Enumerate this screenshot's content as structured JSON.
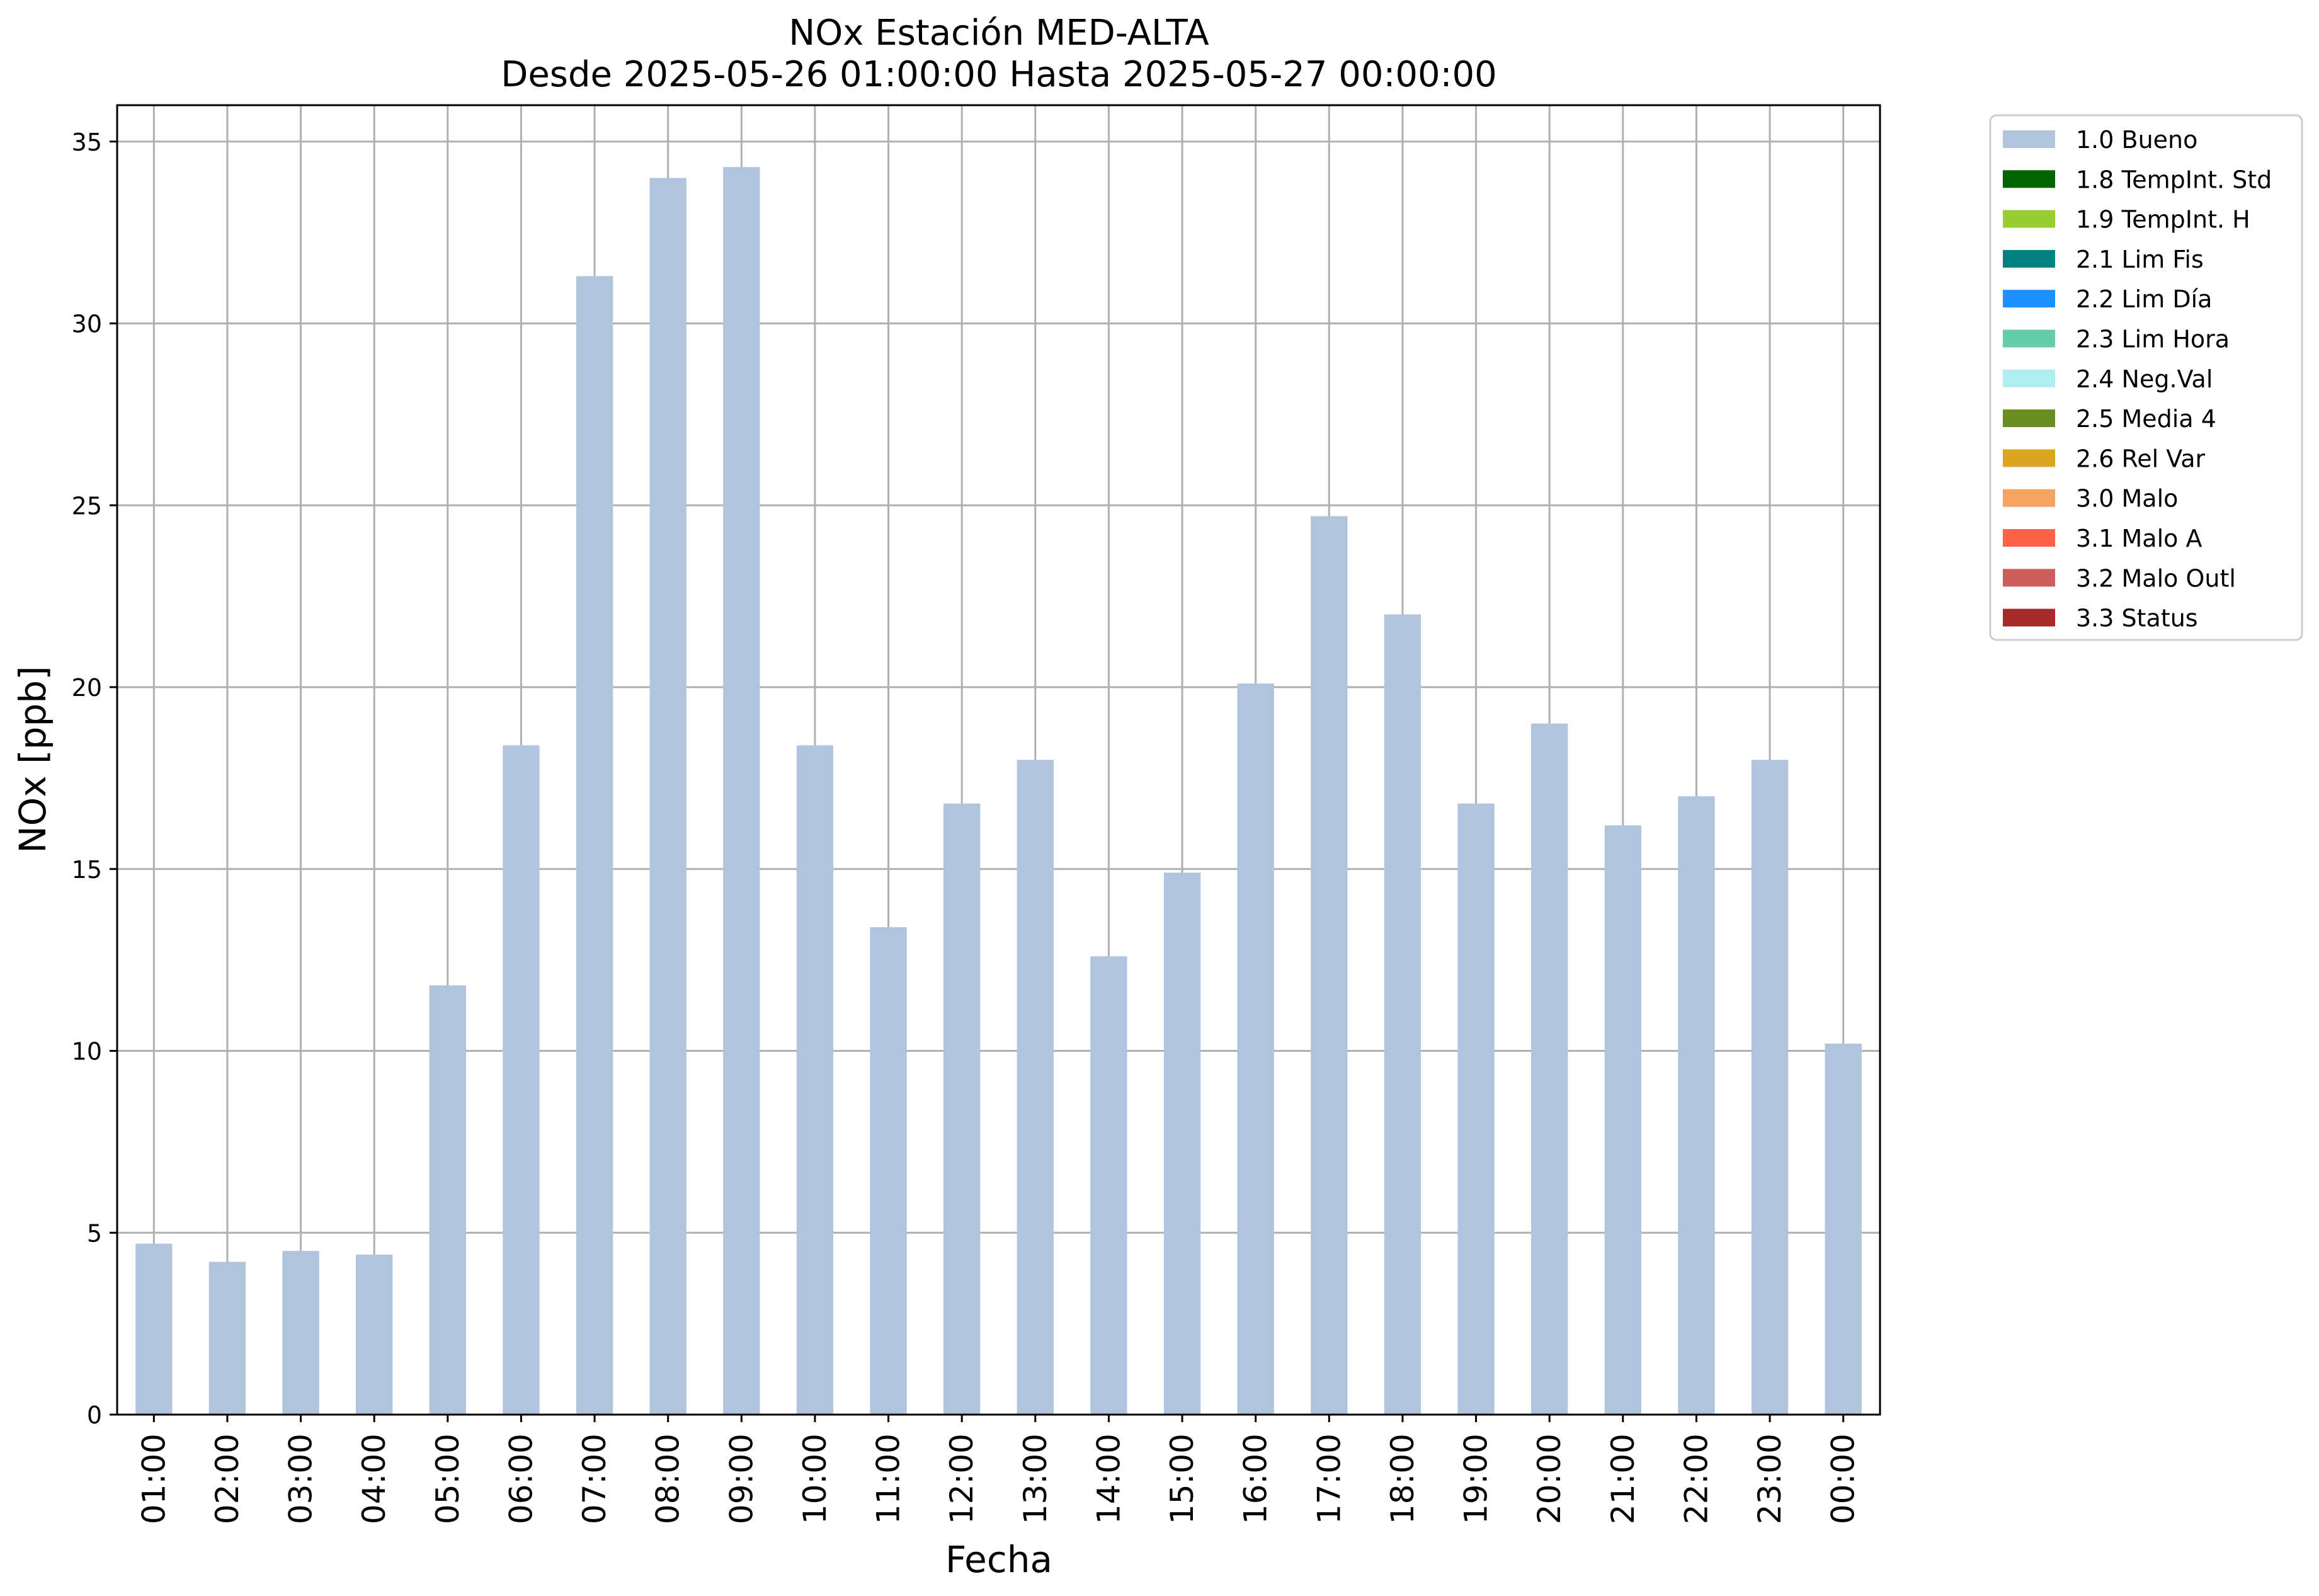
{
  "chart_data": {
    "type": "bar",
    "title": "NOx Estación MED-ALTA",
    "subtitle": "Desde 2025-05-26 01:00:00 Hasta 2025-05-27 00:00:00",
    "xlabel": "Fecha",
    "ylabel": "NOx [ppb]",
    "ylim": [
      0,
      36
    ],
    "yticks": [
      0,
      5,
      10,
      15,
      20,
      25,
      30,
      35
    ],
    "grid": true,
    "legend_placement": "outside-top-right",
    "categories": [
      "01:00",
      "02:00",
      "03:00",
      "04:00",
      "05:00",
      "06:00",
      "07:00",
      "08:00",
      "09:00",
      "10:00",
      "11:00",
      "12:00",
      "13:00",
      "14:00",
      "15:00",
      "16:00",
      "17:00",
      "18:00",
      "19:00",
      "20:00",
      "21:00",
      "22:00",
      "23:00",
      "00:00"
    ],
    "series": [
      {
        "name": "1.0 Bueno",
        "color": "#b0c4de",
        "values": [
          4.7,
          4.2,
          4.5,
          4.4,
          11.8,
          18.4,
          31.3,
          34.0,
          34.3,
          18.4,
          13.4,
          16.8,
          18.0,
          12.6,
          14.9,
          20.1,
          24.7,
          22.0,
          16.8,
          19.0,
          16.2,
          17.0,
          18.0,
          10.2
        ]
      }
    ],
    "legend": [
      {
        "label": "1.0 Bueno",
        "color": "#b0c4de"
      },
      {
        "label": "1.8 TempInt. Std",
        "color": "#006400"
      },
      {
        "label": "1.9 TempInt. H",
        "color": "#9acd32"
      },
      {
        "label": "2.1 Lim Fis",
        "color": "#008080"
      },
      {
        "label": "2.2 Lim Día",
        "color": "#1e90ff"
      },
      {
        "label": "2.3 Lim Hora",
        "color": "#66cdaa"
      },
      {
        "label": "2.4 Neg.Val",
        "color": "#afeeee"
      },
      {
        "label": "2.5 Media 4",
        "color": "#6b8e23"
      },
      {
        "label": "2.6 Rel Var",
        "color": "#daa520"
      },
      {
        "label": "3.0 Malo",
        "color": "#f4a460"
      },
      {
        "label": "3.1 Malo A",
        "color": "#ff6347"
      },
      {
        "label": "3.2 Malo Outl",
        "color": "#cd5c5c"
      },
      {
        "label": "3.3 Status",
        "color": "#a52a2a"
      }
    ]
  }
}
